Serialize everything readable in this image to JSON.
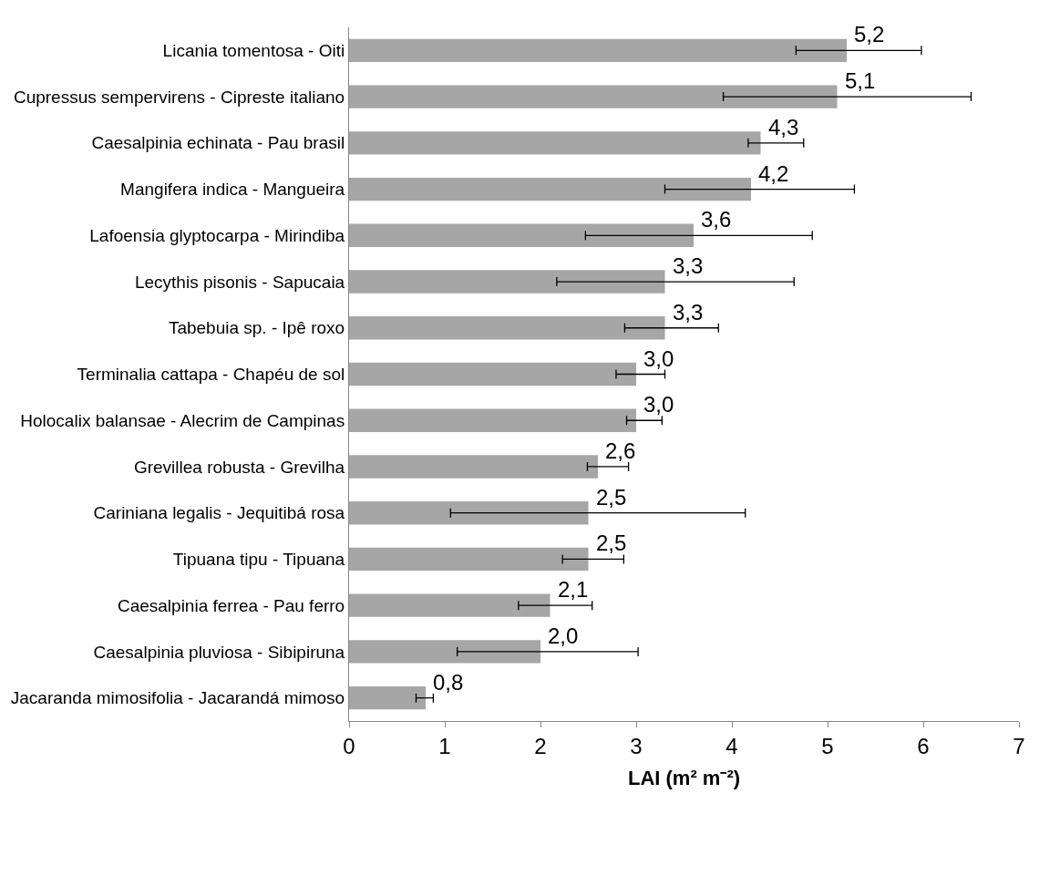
{
  "chart_data": {
    "type": "bar",
    "orientation": "horizontal",
    "categories": [
      "Licania tomentosa - Oiti",
      "Cupressus sempervirens - Cipreste italiano",
      "Caesalpinia echinata - Pau brasil",
      "Mangifera indica - Mangueira",
      "Lafoensia glyptocarpa - Mirindiba",
      "Lecythis pisonis - Sapucaia",
      "Tabebuia sp. - Ipê roxo",
      "Terminalia cattapa - Chapéu de sol",
      "Holocalix balansae - Alecrim de Campinas",
      "Grevillea robusta - Grevilha",
      "Cariniana legalis - Jequitibá rosa",
      "Tipuana tipu - Tipuana",
      "Caesalpinia ferrea - Pau ferro",
      "Caesalpinia pluviosa - Sibipiruna",
      "Jacaranda mimosifolia - Jacarandá mimoso"
    ],
    "values": [
      5.2,
      5.1,
      4.3,
      4.2,
      3.6,
      3.3,
      3.3,
      3.0,
      3.0,
      2.6,
      2.5,
      2.5,
      2.1,
      2.0,
      0.8
    ],
    "value_labels": [
      "5,2",
      "5,1",
      "4,3",
      "4,2",
      "3,6",
      "3,3",
      "3,3",
      "3,0",
      "3,0",
      "2,6",
      "2,5",
      "2,5",
      "2,1",
      "2,0",
      "0,8"
    ],
    "errors": [
      [
        4.67,
        5.98
      ],
      [
        3.91,
        6.5
      ],
      [
        4.17,
        4.75
      ],
      [
        3.3,
        5.28
      ],
      [
        2.47,
        4.84
      ],
      [
        2.17,
        4.65
      ],
      [
        2.88,
        3.86
      ],
      [
        2.79,
        3.3
      ],
      [
        2.9,
        3.27
      ],
      [
        2.49,
        2.92
      ],
      [
        1.06,
        4.14
      ],
      [
        2.23,
        2.87
      ],
      [
        1.77,
        2.54
      ],
      [
        1.13,
        3.02
      ],
      [
        0.7,
        0.88
      ]
    ],
    "color": "#a6a6a6",
    "xlabel": "LAI (m² m⁻²)",
    "xlim": [
      0,
      7
    ],
    "xticks": [
      0,
      1,
      2,
      3,
      4,
      5,
      6,
      7
    ],
    "grid": false
  }
}
